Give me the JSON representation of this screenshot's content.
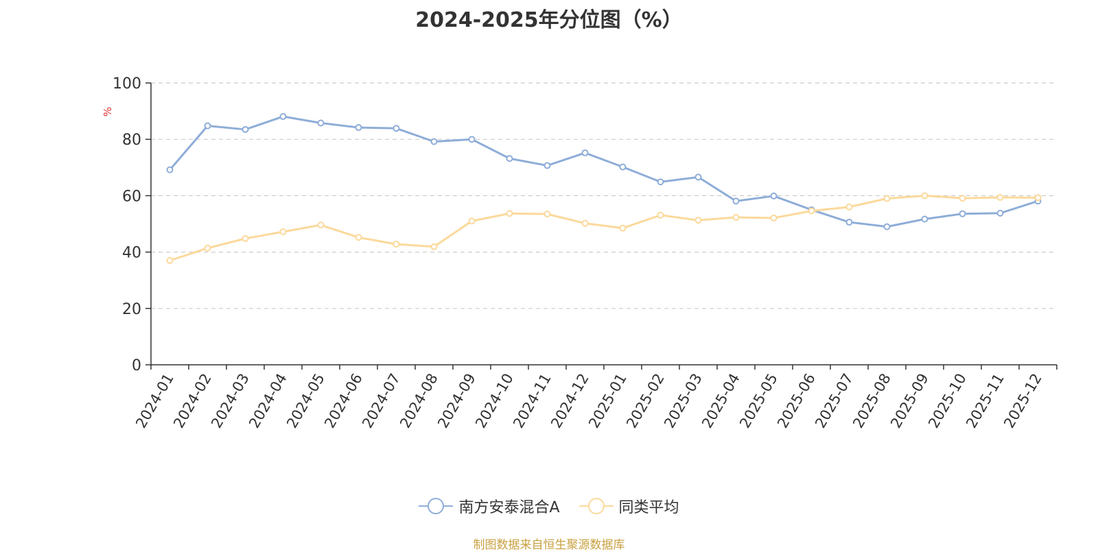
{
  "chart_data": {
    "type": "line",
    "title": "2024-2025年分位图（%）",
    "ylabel": "%",
    "xlabel": "",
    "ylim": [
      0,
      100
    ],
    "yticks": [
      0,
      20,
      40,
      60,
      80,
      100
    ],
    "grid": true,
    "legend_position": "bottom",
    "categories": [
      "2024-01",
      "2024-02",
      "2024-03",
      "2024-04",
      "2024-05",
      "2024-06",
      "2024-07",
      "2024-08",
      "2024-09",
      "2024-10",
      "2024-11",
      "2024-12",
      "2025-01",
      "2025-02",
      "2025-03",
      "2025-04",
      "2025-05",
      "2025-06",
      "2025-07",
      "2025-08",
      "2025-09",
      "2025-10",
      "2025-11",
      "2025-12"
    ],
    "series": [
      {
        "name": "南方安泰混合A",
        "color": "#8eadd8",
        "values": [
          69.2,
          84.8,
          83.5,
          88.1,
          85.8,
          84.2,
          83.9,
          79.2,
          80.0,
          73.2,
          70.7,
          75.2,
          70.2,
          64.9,
          66.6,
          58.1,
          59.9,
          55.0,
          50.6,
          49.0,
          51.7,
          53.6,
          53.8,
          58.1
        ]
      },
      {
        "name": "同类平均",
        "color": "#fbd99b",
        "values": [
          37.0,
          41.4,
          44.8,
          47.2,
          49.6,
          45.2,
          42.8,
          41.9,
          51.0,
          53.7,
          53.5,
          50.2,
          48.5,
          53.1,
          51.3,
          52.3,
          52.1,
          54.6,
          56.0,
          59.0,
          60.0,
          59.1,
          59.4,
          59.3
        ]
      }
    ]
  },
  "source_note": "制图数据来自恒生聚源数据库"
}
